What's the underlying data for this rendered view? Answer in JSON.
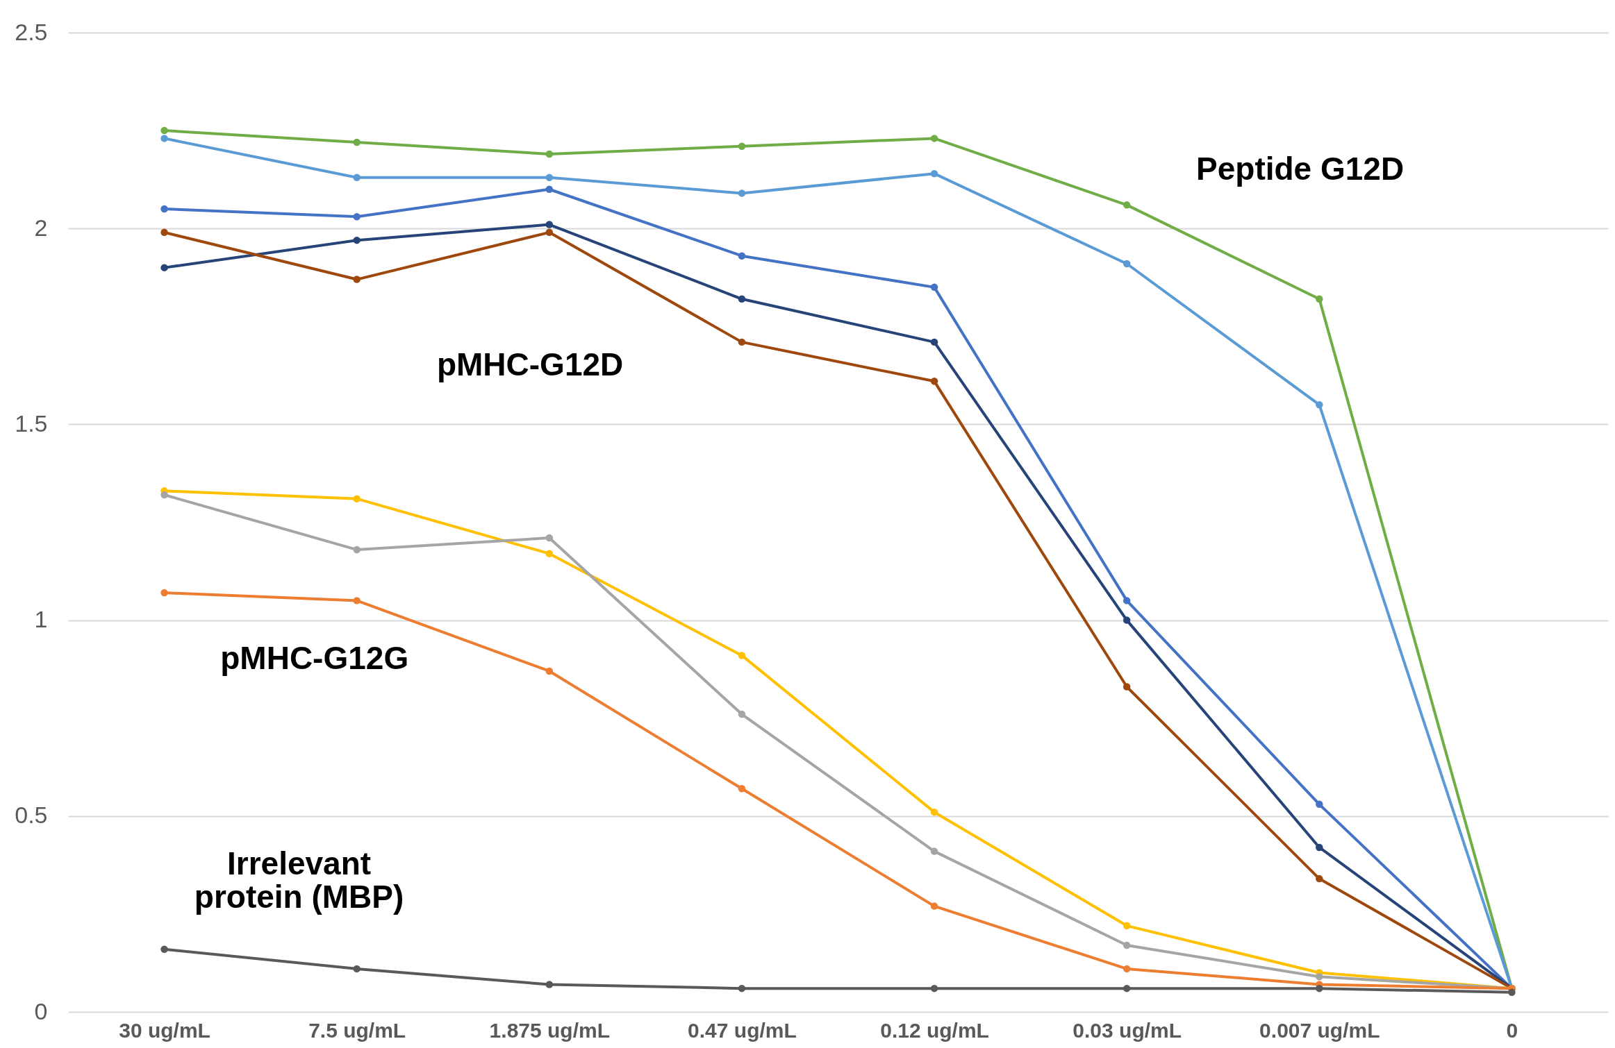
{
  "chart_data": {
    "type": "line",
    "categories": [
      "30 ug/mL",
      "7.5 ug/mL",
      "1.875 ug/mL",
      "0.47 ug/mL",
      "0.12 ug/mL",
      "0.03 ug/mL",
      "0.007 ug/mL",
      "0"
    ],
    "series": [
      {
        "color": "#70ad47",
        "values": [
          2.25,
          2.22,
          2.19,
          2.21,
          2.23,
          2.06,
          1.82,
          0.06
        ]
      },
      {
        "color": "#5b9bd5",
        "values": [
          2.23,
          2.13,
          2.13,
          2.09,
          2.14,
          1.91,
          1.55,
          0.06
        ]
      },
      {
        "color": "#4472c4",
        "values": [
          2.05,
          2.03,
          2.1,
          1.93,
          1.85,
          1.05,
          0.53,
          0.06
        ]
      },
      {
        "color": "#264478",
        "values": [
          1.9,
          1.97,
          2.01,
          1.82,
          1.71,
          1.0,
          0.42,
          0.06
        ]
      },
      {
        "color": "#9e480e",
        "values": [
          1.99,
          1.87,
          1.99,
          1.71,
          1.61,
          0.83,
          0.34,
          0.06
        ]
      },
      {
        "color": "#ffc000",
        "values": [
          1.33,
          1.31,
          1.17,
          0.91,
          0.51,
          0.22,
          0.1,
          0.06
        ]
      },
      {
        "color": "#a5a5a5",
        "values": [
          1.32,
          1.18,
          1.21,
          0.76,
          0.41,
          0.17,
          0.09,
          0.06
        ]
      },
      {
        "color": "#ed7d31",
        "values": [
          1.07,
          1.05,
          0.87,
          0.57,
          0.27,
          0.11,
          0.07,
          0.06
        ]
      },
      {
        "color": "#595959",
        "values": [
          0.16,
          0.11,
          0.07,
          0.06,
          0.06,
          0.06,
          0.06,
          0.05
        ]
      }
    ],
    "ylim": [
      0,
      2.5
    ],
    "yticks": [
      0,
      0.5,
      1,
      1.5,
      2,
      2.5
    ],
    "grid": "y",
    "marker": "circle",
    "line_style": "solid",
    "legend": false,
    "annotations": [
      "Peptide G12D",
      "pMHC-G12D",
      "pMHC-G12G",
      "Irrelevant\nprotein (MBP)"
    ]
  }
}
